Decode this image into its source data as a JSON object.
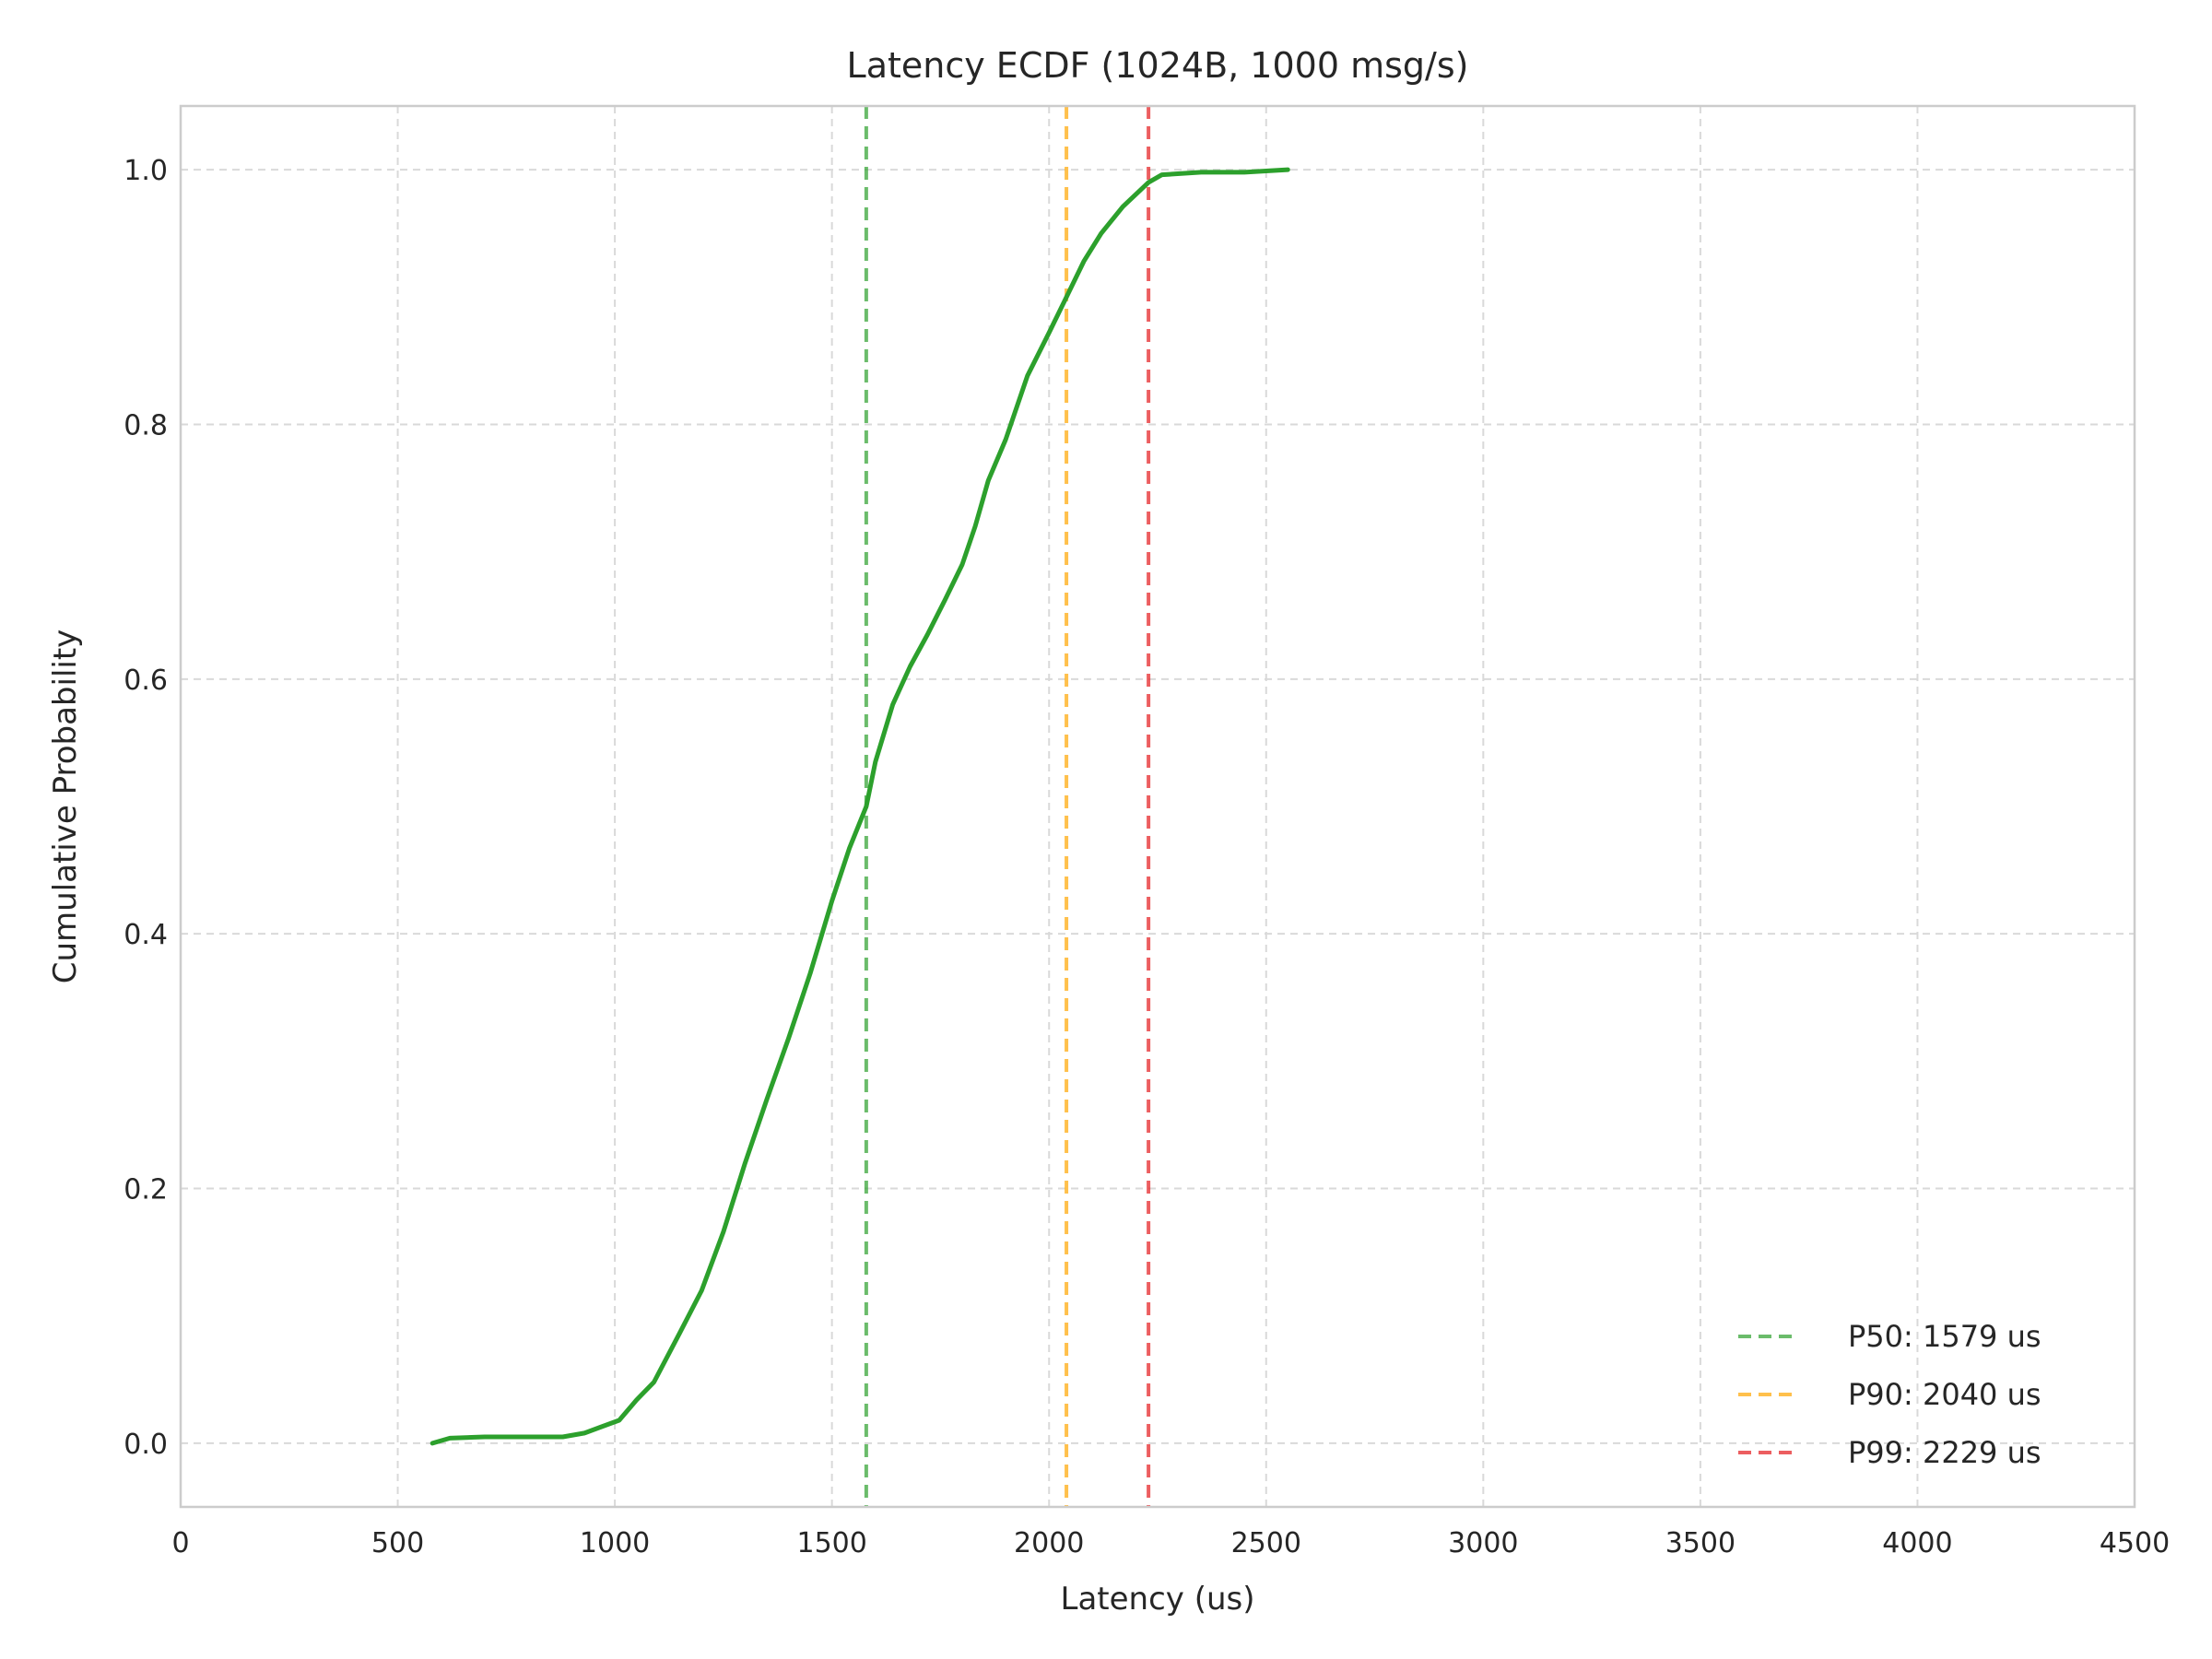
{
  "chart_data": {
    "type": "line",
    "title": "Latency ECDF (1024B, 1000 msg/s)",
    "xlabel": "Latency (us)",
    "ylabel": "Cumulative Probability",
    "xlim": [
      0,
      4500
    ],
    "ylim": [
      -0.05,
      1.05
    ],
    "xticks": [
      0,
      500,
      1000,
      1500,
      2000,
      2500,
      3000,
      3500,
      4000,
      4500
    ],
    "xtick_labels": [
      "0",
      "500",
      "1000",
      "1500",
      "2000",
      "2500",
      "3000",
      "3500",
      "4000",
      "4500"
    ],
    "yticks": [
      0.0,
      0.2,
      0.4,
      0.6,
      0.8,
      1.0
    ],
    "ytick_labels": [
      "0.0",
      "0.2",
      "0.4",
      "0.6",
      "0.8",
      "1.0"
    ],
    "grid": true,
    "legend_position": "lower right",
    "series": [
      {
        "color": "#2ca02c",
        "x": [
          580,
          620,
          700,
          800,
          880,
          930,
          970,
          1010,
          1050,
          1090,
          1150,
          1200,
          1250,
          1300,
          1350,
          1400,
          1450,
          1500,
          1540,
          1579,
          1600,
          1640,
          1680,
          1720,
          1760,
          1800,
          1830,
          1860,
          1900,
          1950,
          2000,
          2040,
          2080,
          2120,
          2170,
          2229,
          2260,
          2350,
          2450,
          2550
        ],
        "y": [
          0.0,
          0.004,
          0.005,
          0.005,
          0.005,
          0.008,
          0.013,
          0.018,
          0.034,
          0.048,
          0.087,
          0.12,
          0.166,
          0.22,
          0.27,
          0.318,
          0.369,
          0.426,
          0.467,
          0.5,
          0.535,
          0.58,
          0.61,
          0.635,
          0.662,
          0.69,
          0.72,
          0.756,
          0.788,
          0.838,
          0.872,
          0.9,
          0.928,
          0.95,
          0.971,
          0.99,
          0.996,
          0.998,
          0.998,
          1.0
        ]
      }
    ],
    "reference_lines": [
      {
        "x": 1579,
        "label": "P50: 1579 us",
        "color": "#2ca02c"
      },
      {
        "x": 2040,
        "label": "P90: 2040 us",
        "color": "#ffa500"
      },
      {
        "x": 2229,
        "label": "P99: 2229 us",
        "color": "#e41a1c"
      }
    ]
  }
}
